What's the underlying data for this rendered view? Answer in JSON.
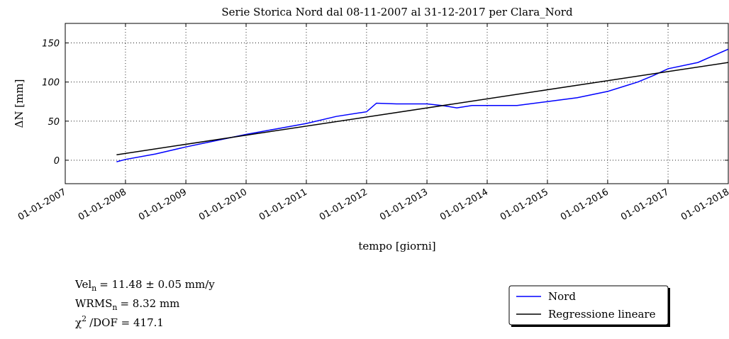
{
  "chart_data": {
    "type": "line",
    "title": "Serie Storica Nord dal 08-11-2007 al 31-12-2017 per Clara_Nord",
    "x_label": "tempo [giorni]",
    "y_label": "ΔN  [mm]",
    "xlim": [
      "01-01-2007",
      "01-01-2018"
    ],
    "xticks": [
      "01-01-2007",
      "01-01-2008",
      "01-01-2009",
      "01-01-2010",
      "01-01-2011",
      "01-01-2012",
      "01-01-2013",
      "01-01-2014",
      "01-01-2015",
      "01-01-2016",
      "01-01-2017",
      "01-01-2018"
    ],
    "ylim": [
      -30,
      175
    ],
    "yticks": [
      0,
      50,
      100,
      150
    ],
    "grid": true,
    "legend": "lower right",
    "series": [
      {
        "name": "Nord",
        "color": "#0000ff",
        "x": [
          "08-11-2007",
          "01-01-2008",
          "01-07-2008",
          "01-01-2009",
          "01-07-2009",
          "01-01-2010",
          "01-07-2010",
          "01-01-2011",
          "01-07-2011",
          "01-01-2012",
          "01-03-2012",
          "01-07-2012",
          "01-01-2013",
          "01-04-2013",
          "01-07-2013",
          "01-10-2013",
          "01-01-2014",
          "01-07-2014",
          "01-01-2015",
          "01-07-2015",
          "01-01-2016",
          "01-07-2016",
          "01-10-2016",
          "01-01-2017",
          "01-07-2017",
          "31-12-2017"
        ],
        "values": [
          -2,
          1,
          8,
          17,
          25,
          33,
          40,
          47,
          56,
          62,
          73,
          72,
          72,
          70,
          67,
          70,
          70,
          70,
          75,
          80,
          88,
          100,
          108,
          117,
          125,
          142
        ]
      },
      {
        "name": "Regressione lineare",
        "color": "#000000",
        "x": [
          "08-11-2007",
          "31-12-2017"
        ],
        "values": [
          7,
          125
        ]
      }
    ],
    "annotations": [
      {
        "main": "Vel",
        "sub": "n",
        "rest": "=  11.48 ± 0.05  mm/y"
      },
      {
        "main": "WRMS",
        "sub": "n",
        "rest": "=  8.32  mm"
      },
      {
        "main": "χ",
        "sup": "2",
        "rest": "/DOF  =  417.1"
      }
    ]
  }
}
